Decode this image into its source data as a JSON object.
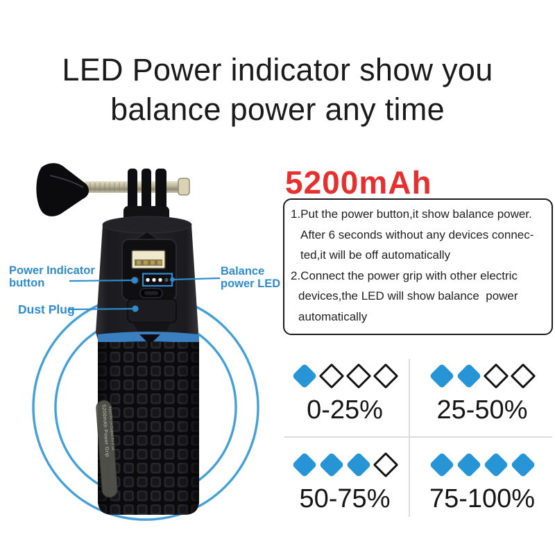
{
  "title": {
    "line1": "LED Power indicator show you",
    "line2": "balance power any time"
  },
  "capacity_label": "5200mAh",
  "instructions": {
    "lines": [
      "1.Put the power button,it show balance power.",
      "After 6 seconds without any devices connec-",
      "ted,it will be off automatically",
      "2.Connect the power grip with other electric",
      "devices,the LED will show balance  power",
      "automatically"
    ]
  },
  "callouts": {
    "power_indicator": {
      "line1": "Power Indicator",
      "line2": "button"
    },
    "balance_led": {
      "line1": "Balance",
      "line2": "power LED"
    },
    "dust_plug": {
      "label": "Dust Plug"
    }
  },
  "device": {
    "label_line1": "5200mAh Power Grip",
    "label_line2": "Input:5V-1A Output:5V-2.1A",
    "led_dots_lit": 3,
    "led_dots_total": 4
  },
  "battery_levels": [
    {
      "label": "0-25%",
      "filled": 1,
      "total": 4
    },
    {
      "label": "25-50%",
      "filled": 2,
      "total": 4
    },
    {
      "label": "50-75%",
      "filled": 3,
      "total": 4
    },
    {
      "label": "75-100%",
      "filled": 4,
      "total": 4
    }
  ],
  "colors": {
    "accent_blue": "#2E8CCD",
    "diamond_blue": "#2795D5",
    "circle_blue": "#45A0D8",
    "ring_blue": "#3A7FC0",
    "capacity_red": "#E4302E",
    "text_dark": "#1B1B1B",
    "divider_gray": "#DCDCDC"
  }
}
